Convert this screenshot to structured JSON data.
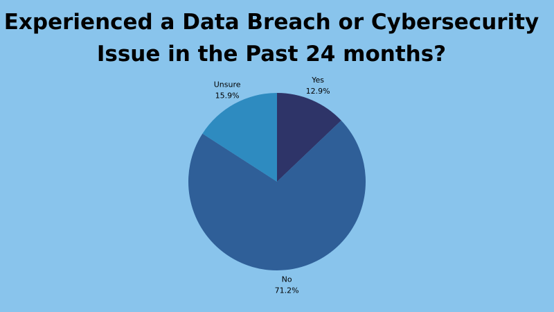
{
  "chart_data": {
    "type": "pie",
    "title": [
      "Experienced a Data Breach or Cybersecurity",
      "Issue in the Past 24 months?"
    ],
    "categories": [
      "Yes",
      "No",
      "Unsure"
    ],
    "values": [
      12.9,
      71.2,
      15.9
    ],
    "value_labels": [
      "12.9%",
      "71.2%",
      "15.9%"
    ],
    "colors": [
      "#2e3468",
      "#2f5f98",
      "#2e8bc0"
    ],
    "background": "#89c4ec"
  }
}
